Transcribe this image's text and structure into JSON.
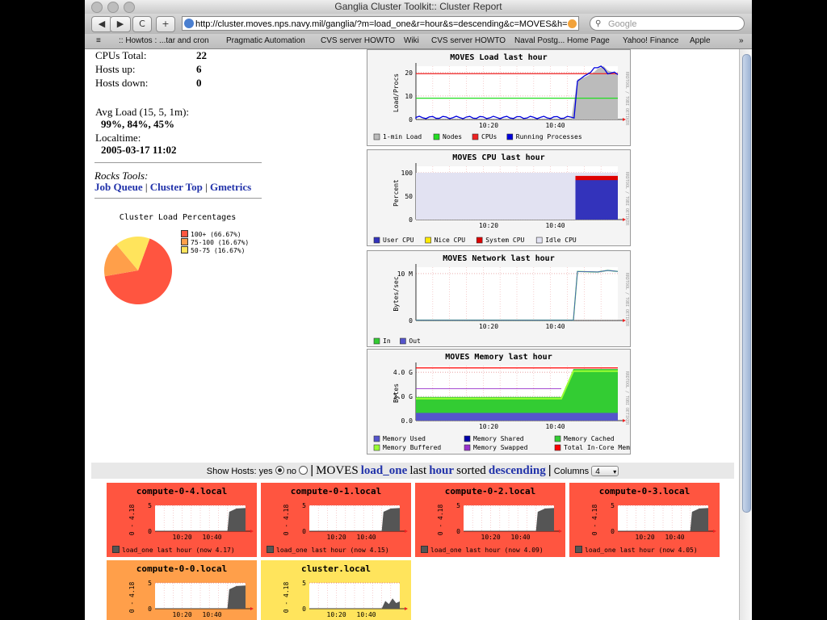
{
  "window": {
    "title": "Ganglia Cluster Toolkit:: Cluster Report",
    "url": "http://cluster.moves.nps.navy.mil/ganglia/?m=load_one&r=hour&s=descending&c=MOVES&h=",
    "search_placeholder": "Google"
  },
  "toolbar": {
    "back": "◀",
    "forward": "▶",
    "reload": "C",
    "add": "+"
  },
  "bookmarks": [
    "≡",
    ":: Howtos : ...tar and cron",
    "Pragmatic Automation",
    "CVS server HOWTO",
    "Wiki",
    "CVS server HOWTO",
    "Naval Postg... Home Page",
    "Yahoo! Finance",
    "Apple",
    "»"
  ],
  "summary": {
    "cpus_label": "CPUs Total:",
    "cpus": "22",
    "up_label": "Hosts up:",
    "up": "6",
    "down_label": "Hosts down:",
    "down": "0",
    "avg_label": "Avg Load (15, 5, 1m):",
    "avg": "99%, 84%, 45%",
    "localtime_label": "Localtime:",
    "localtime": "2005-03-17 11:02"
  },
  "rocks": {
    "label": "Rocks Tools:",
    "job_queue": "Job Queue",
    "sep1": "|",
    "cluster_top": "Cluster Top",
    "sep2": "|",
    "gmetrics": "Gmetrics"
  },
  "pie": {
    "title": "Cluster Load Percentages",
    "slices": [
      {
        "label": "100+ (66.67%)",
        "value": 66.67,
        "color": "#ff5540"
      },
      {
        "label": "75-100 (16.67%)",
        "value": 16.67,
        "color": "#ff9f4a"
      },
      {
        "label": "50-75 (16.67%)",
        "value": 16.67,
        "color": "#ffe45c"
      }
    ]
  },
  "graphs": {
    "load": {
      "title": "MOVES Load last hour",
      "ylabel": "Load/Procs",
      "yticks": [
        "0",
        "10",
        "20"
      ],
      "xticks": [
        "10:20",
        "10:40"
      ],
      "legend": [
        {
          "label": "1-min Load",
          "color": "#bbbbbb"
        },
        {
          "label": "Nodes",
          "color": "#22dd22"
        },
        {
          "label": "CPUs",
          "color": "#ee2222"
        },
        {
          "label": "Running Processes",
          "color": "#0000dd"
        }
      ],
      "side": "RRDTOOL / TOBI OETIKER"
    },
    "cpu": {
      "title": "MOVES CPU last hour",
      "ylabel": "Percent",
      "yticks": [
        "0",
        "50",
        "100"
      ],
      "xticks": [
        "10:20",
        "10:40"
      ],
      "legend": [
        {
          "label": "User CPU",
          "color": "#3333bb"
        },
        {
          "label": "Nice CPU",
          "color": "#ffea00"
        },
        {
          "label": "System CPU",
          "color": "#dd0000"
        },
        {
          "label": "Idle CPU",
          "color": "#e2e2f2"
        }
      ],
      "side": "RRDTOOL / TOBI OETIKER"
    },
    "network": {
      "title": "MOVES Network last hour",
      "ylabel": "Bytes/sec",
      "yticks": [
        "0",
        "10 M"
      ],
      "xticks": [
        "10:20",
        "10:40"
      ],
      "legend": [
        {
          "label": "In",
          "color": "#33cc33"
        },
        {
          "label": "Out",
          "color": "#5555cc"
        }
      ],
      "side": "RRDTOOL / TOBI OETIKER"
    },
    "memory": {
      "title": "MOVES Memory last hour",
      "ylabel": "Bytes",
      "yticks": [
        "0.0",
        "2.0 G",
        "4.0 G"
      ],
      "xticks": [
        "10:20",
        "10:40"
      ],
      "legend": [
        {
          "label": "Memory Used",
          "color": "#5555cc"
        },
        {
          "label": "Memory Shared",
          "color": "#0000aa"
        },
        {
          "label": "Memory Cached",
          "color": "#33cc33"
        },
        {
          "label": "Memory Buffered",
          "color": "#99ff33"
        },
        {
          "label": "Memory Swapped",
          "color": "#9933cc"
        },
        {
          "label": "Total In-Core Memory",
          "color": "#ff0000"
        }
      ],
      "side": "RRDTOOL / TOBI OETIKER"
    }
  },
  "controls": {
    "show_hosts": "Show Hosts: yes",
    "no": "no",
    "sep": "|",
    "cluster": "MOVES",
    "metric": "load_one",
    "last": "last",
    "range": "hour",
    "sorted": "sorted",
    "order": "descending",
    "sep2": "|",
    "columns_label": "Columns",
    "columns": "4"
  },
  "hosts": [
    {
      "name": "compute-0-4.local",
      "ylabel": "0 - 4.18",
      "footer": "load_one last hour (now 4.17)",
      "color": "#ff5540"
    },
    {
      "name": "compute-0-1.local",
      "ylabel": "0 - 4.18",
      "footer": "load_one last hour (now 4.15)",
      "color": "#ff5540"
    },
    {
      "name": "compute-0-2.local",
      "ylabel": "0 - 4.18",
      "footer": "load_one last hour (now 4.09)",
      "color": "#ff5540"
    },
    {
      "name": "compute-0-3.local",
      "ylabel": "0 - 4.18",
      "footer": "load_one last hour (now 4.05)",
      "color": "#ff5540"
    },
    {
      "name": "compute-0-0.local",
      "ylabel": "0 - 4.18",
      "footer": "",
      "color": "#ff9f4a"
    },
    {
      "name": "cluster.local",
      "ylabel": "0 - 4.18",
      "footer": "",
      "color": "#ffe45c"
    }
  ],
  "host_axis": {
    "yticks": [
      "0",
      "5"
    ],
    "xticks": [
      "10:20",
      "10:40"
    ]
  }
}
